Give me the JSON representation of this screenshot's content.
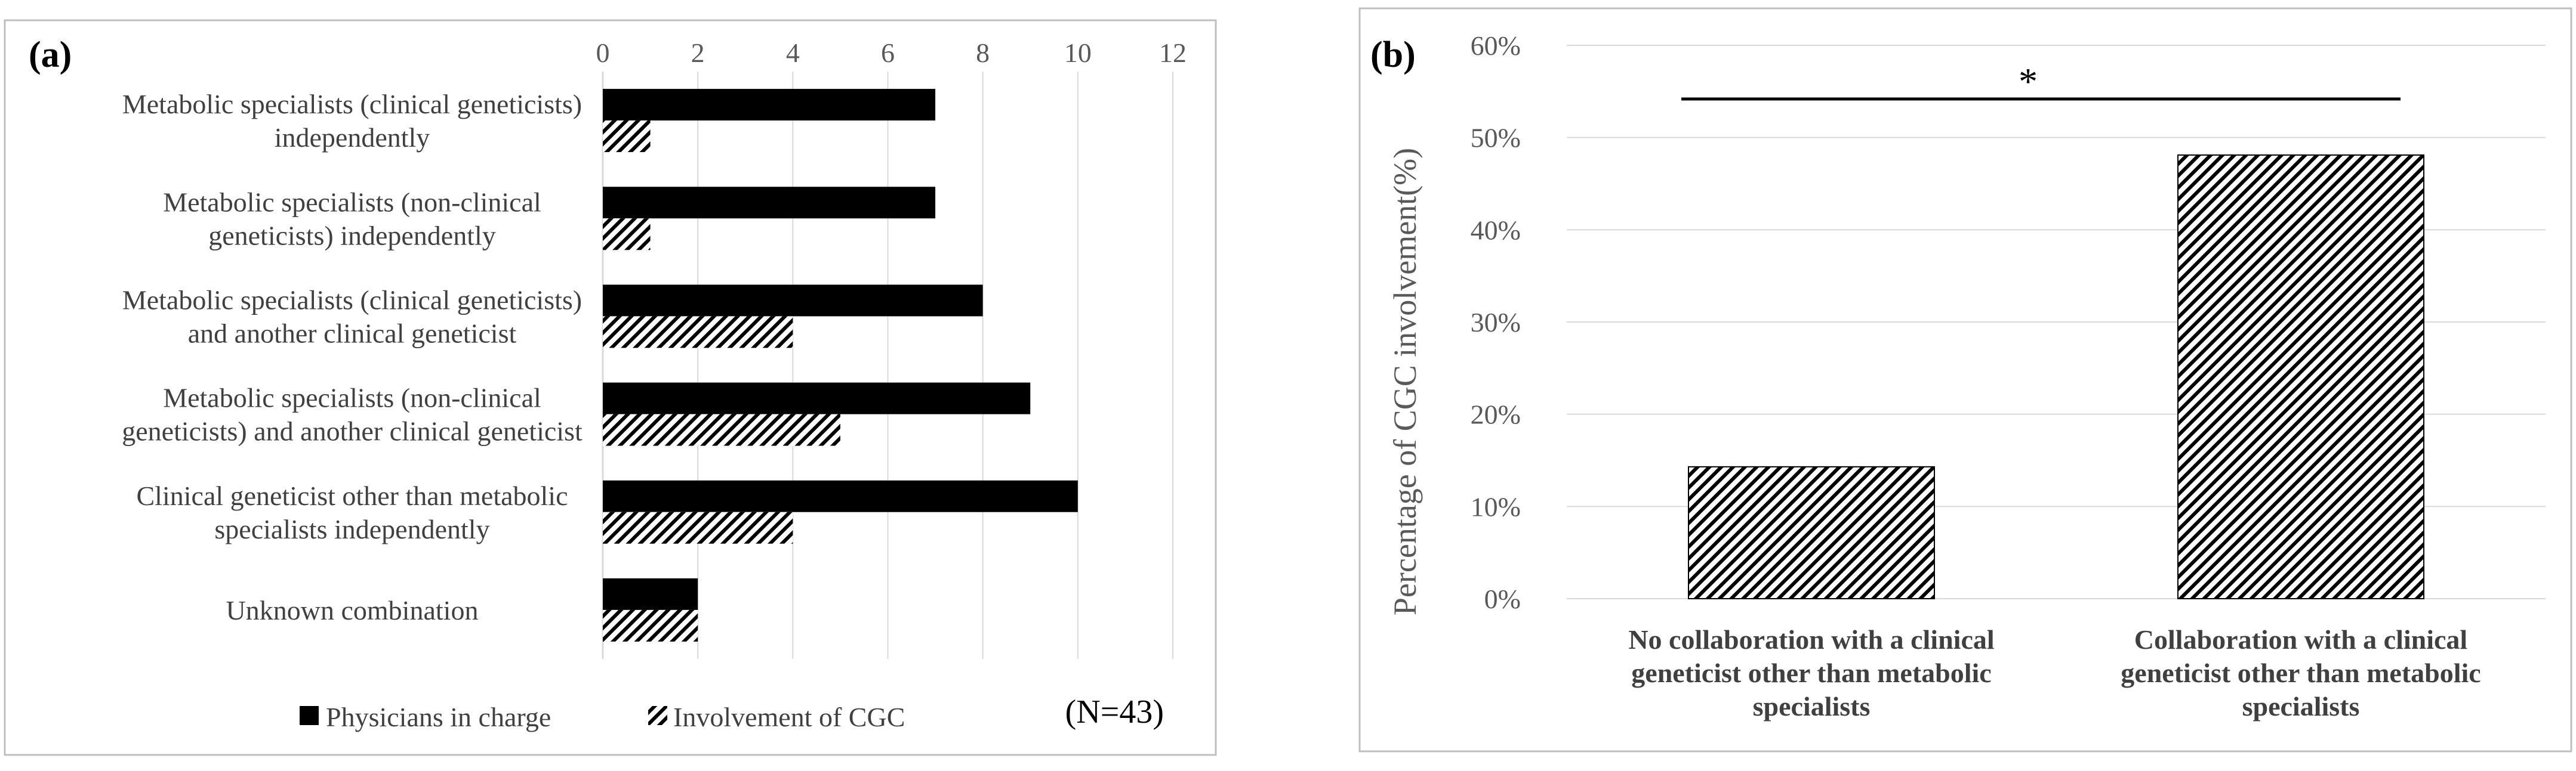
{
  "colors": {
    "solid": "#000000",
    "hatch": "#000000",
    "grid": "#d9d9d9",
    "frame": "#bfbfbf",
    "axis_line": "#d9d9d9"
  },
  "chart_data": [
    {
      "panel": "(a)",
      "type": "bar",
      "orientation": "horizontal",
      "categories": [
        [
          "Metabolic specialists (clinical geneticists)",
          "independently"
        ],
        [
          "Metabolic specialists (non-clinical",
          "geneticists) independently"
        ],
        [
          "Metabolic specialists (clinical geneticists)",
          "and another clinical geneticist"
        ],
        [
          "Metabolic specialists (non-clinical",
          "geneticists) and another clinical geneticist"
        ],
        [
          "Clinical geneticist other than metabolic",
          "specialists independently"
        ],
        [
          "Unknown combination"
        ]
      ],
      "series": [
        {
          "name": "Physicians in charge",
          "style": "solid",
          "values": [
            7,
            7,
            8,
            9,
            10,
            2
          ]
        },
        {
          "name": "Involvement of CGC",
          "style": "hatched",
          "values": [
            1,
            1,
            4,
            5,
            4,
            2
          ]
        }
      ],
      "xlim": [
        0,
        12
      ],
      "xticks": [
        "0",
        "2",
        "4",
        "6",
        "8",
        "10",
        "12"
      ],
      "axis_position": "top",
      "grid": true,
      "legend": "bottom",
      "note": "(N=43)"
    },
    {
      "panel": "(b)",
      "type": "bar",
      "orientation": "vertical",
      "categories": [
        [
          "No collaboration with a clinical",
          "geneticist other than metabolic",
          "specialists"
        ],
        [
          "Collaboration with a clinical",
          "geneticist other than metabolic",
          "specialists"
        ]
      ],
      "values": [
        14.3,
        48.1
      ],
      "ylabel": "Percentage of CGC involvement(%)",
      "ylim": [
        0,
        60
      ],
      "yticks": [
        "0%",
        "10%",
        "20%",
        "30%",
        "40%",
        "50%",
        "60%"
      ],
      "grid": true,
      "significance": "*",
      "style": "hatched"
    }
  ]
}
